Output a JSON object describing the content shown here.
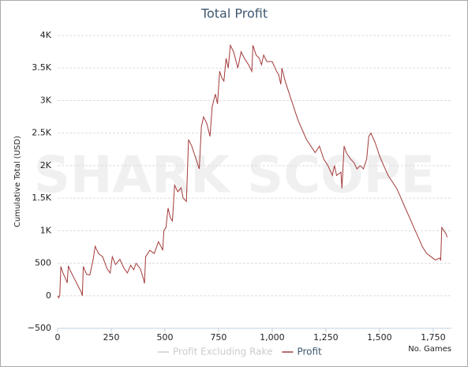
{
  "chart_data": {
    "type": "line",
    "title": "Total Profit",
    "watermark": "SHARK SCOPE",
    "ylabel": "Cumulative Total (USD)",
    "xlabel": "No. Games",
    "xlim": [
      0,
      1835
    ],
    "ylim": [
      -500,
      4000
    ],
    "xticks": [
      0,
      250,
      500,
      750,
      {
        "value": 1000,
        "label": "1,000"
      },
      {
        "value": 1250,
        "label": "1,250"
      },
      {
        "value": 1500,
        "label": "1,500"
      },
      {
        "value": 1750,
        "label": "1,750"
      }
    ],
    "yticks": [
      {
        "value": -500,
        "label": "−500"
      },
      0,
      500,
      {
        "value": 1000,
        "label": "1K"
      },
      {
        "value": 1500,
        "label": "1.5K"
      },
      {
        "value": 2000,
        "label": "2K"
      },
      {
        "value": 2500,
        "label": "2.5K"
      },
      {
        "value": 3000,
        "label": "3K"
      },
      {
        "value": 3500,
        "label": "3.5K"
      },
      {
        "value": 4000,
        "label": "4K"
      }
    ],
    "grid": true,
    "x": [
      0,
      5,
      10,
      15,
      25,
      35,
      45,
      50,
      60,
      80,
      100,
      110,
      115,
      120,
      135,
      150,
      165,
      175,
      190,
      210,
      230,
      245,
      255,
      270,
      290,
      310,
      325,
      340,
      355,
      365,
      385,
      400,
      405,
      410,
      430,
      450,
      470,
      480,
      490,
      495,
      505,
      515,
      525,
      535,
      545,
      560,
      575,
      585,
      600,
      610,
      625,
      645,
      660,
      670,
      680,
      695,
      710,
      720,
      735,
      745,
      755,
      765,
      775,
      785,
      795,
      805,
      820,
      840,
      855,
      870,
      890,
      905,
      910,
      925,
      940,
      950,
      960,
      975,
      1000,
      1020,
      1030,
      1040,
      1045,
      1060,
      1080,
      1100,
      1120,
      1140,
      1160,
      1180,
      1200,
      1220,
      1240,
      1260,
      1280,
      1290,
      1300,
      1320,
      1325,
      1335,
      1345,
      1365,
      1380,
      1395,
      1410,
      1425,
      1440,
      1450,
      1460,
      1480,
      1500,
      1520,
      1540,
      1560,
      1580,
      1600,
      1620,
      1640,
      1660,
      1680,
      1700,
      1720,
      1740,
      1760,
      1780,
      1785,
      1790,
      1800,
      1810,
      1815
    ],
    "series": [
      {
        "name": "Profit Excluding Rake",
        "color": "#cccccc",
        "visible": false
      },
      {
        "name": "Profit",
        "color": "#a33a3a",
        "visible": true,
        "values": [
          0,
          -30,
          0,
          450,
          350,
          280,
          200,
          460,
          380,
          250,
          120,
          60,
          0,
          450,
          330,
          320,
          550,
          760,
          650,
          600,
          420,
          350,
          600,
          480,
          560,
          420,
          350,
          470,
          400,
          500,
          420,
          260,
          190,
          600,
          700,
          650,
          830,
          770,
          700,
          1000,
          1050,
          1350,
          1200,
          1150,
          1700,
          1600,
          1660,
          1500,
          1450,
          2400,
          2300,
          2100,
          1950,
          2600,
          2750,
          2650,
          2450,
          2900,
          3100,
          2950,
          3450,
          3350,
          3300,
          3650,
          3500,
          3850,
          3750,
          3500,
          3750,
          3650,
          3550,
          3450,
          3850,
          3700,
          3650,
          3550,
          3700,
          3600,
          3600,
          3450,
          3400,
          3250,
          3500,
          3300,
          3100,
          2900,
          2700,
          2550,
          2400,
          2300,
          2200,
          2300,
          2100,
          2000,
          1850,
          2000,
          1850,
          1900,
          1650,
          2300,
          2200,
          2100,
          2050,
          1950,
          2000,
          1950,
          2100,
          2450,
          2500,
          2350,
          2150,
          2000,
          1850,
          1750,
          1650,
          1500,
          1350,
          1200,
          1050,
          900,
          750,
          650,
          600,
          550,
          580,
          550,
          1050,
          1000,
          950,
          900
        ]
      }
    ]
  }
}
